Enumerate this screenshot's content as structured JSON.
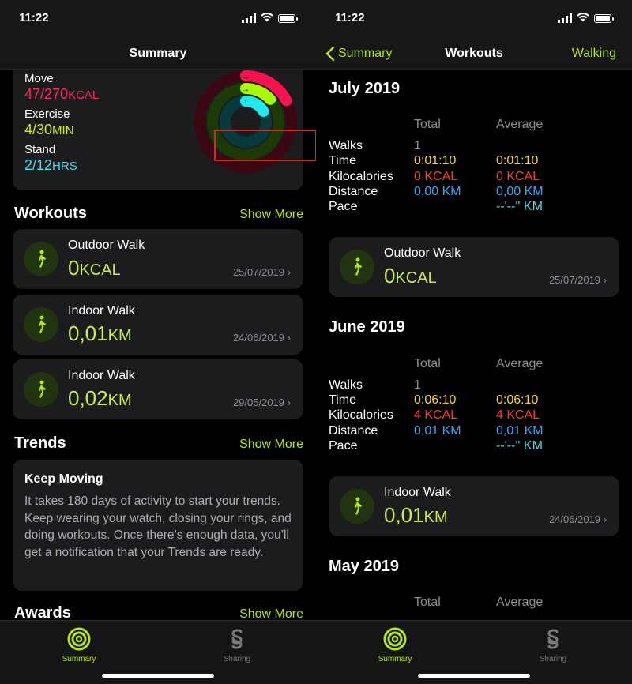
{
  "status": {
    "time": "11:22"
  },
  "left": {
    "nav_title": "Summary",
    "summary": {
      "move_label": "Move",
      "move_value": "47/270",
      "move_unit": "KCAL",
      "exercise_label": "Exercise",
      "exercise_value": "4/30",
      "exercise_unit": "MIN",
      "stand_label": "Stand",
      "stand_value": "2/12",
      "stand_unit": "HRS",
      "move_progress": 0.174,
      "exercise_progress": 0.133,
      "stand_progress": 0.167
    },
    "workouts_title": "Workouts",
    "workouts_show_more": "Show More",
    "workouts": [
      {
        "name": "Outdoor Walk",
        "value": "0",
        "unit": "KCAL",
        "date": "25/07/2019"
      },
      {
        "name": "Indoor Walk",
        "value": "0,01",
        "unit": "KM",
        "date": "24/06/2019"
      },
      {
        "name": "Indoor Walk",
        "value": "0,02",
        "unit": "KM",
        "date": "29/05/2019"
      }
    ],
    "trends_title": "Trends",
    "trends_show_more": "Show More",
    "trend_card_title": "Keep Moving",
    "trend_card_body": "It takes 180 days of activity to start your trends. Keep wearing your watch, closing your rings, and doing workouts. Once there’s enough data, you’ll get a notification that your Trends are ready.",
    "awards_title": "Awards",
    "awards_show_more": "Show More"
  },
  "right": {
    "back_label": "Summary",
    "nav_title": "Workouts",
    "nav_right": "Walking",
    "col_total": "Total",
    "col_average": "Average",
    "labels": {
      "walks": "Walks",
      "time": "Time",
      "kcal": "Kilocalories",
      "distance": "Distance",
      "pace": "Pace"
    },
    "months": [
      {
        "title": "July 2019",
        "walks": "1",
        "time_total": "0:01:10",
        "time_avg": "0:01:10",
        "kcal_total": "0 KCAL",
        "kcal_avg": "0 KCAL",
        "dist_total": "0,00 KM",
        "dist_avg": "0,00 KM",
        "pace_avg": "--'--'' KM",
        "workout": {
          "name": "Outdoor Walk",
          "value": "0",
          "unit": "KCAL",
          "date": "25/07/2019"
        }
      },
      {
        "title": "June 2019",
        "walks": "1",
        "time_total": "0:06:10",
        "time_avg": "0:06:10",
        "kcal_total": "4 KCAL",
        "kcal_avg": "4 KCAL",
        "dist_total": "0,01 KM",
        "dist_avg": "0,01 KM",
        "pace_avg": "--'--'' KM",
        "workout": {
          "name": "Indoor Walk",
          "value": "0,01",
          "unit": "KM",
          "date": "24/06/2019"
        }
      },
      {
        "title": "May 2019"
      }
    ]
  },
  "tabs": {
    "summary": "Summary",
    "sharing": "Sharing"
  },
  "colors": {
    "accent": "#b5e61d",
    "move": "#fa114f",
    "exercise": "#a6ff00",
    "stand": "#1eeaef"
  }
}
